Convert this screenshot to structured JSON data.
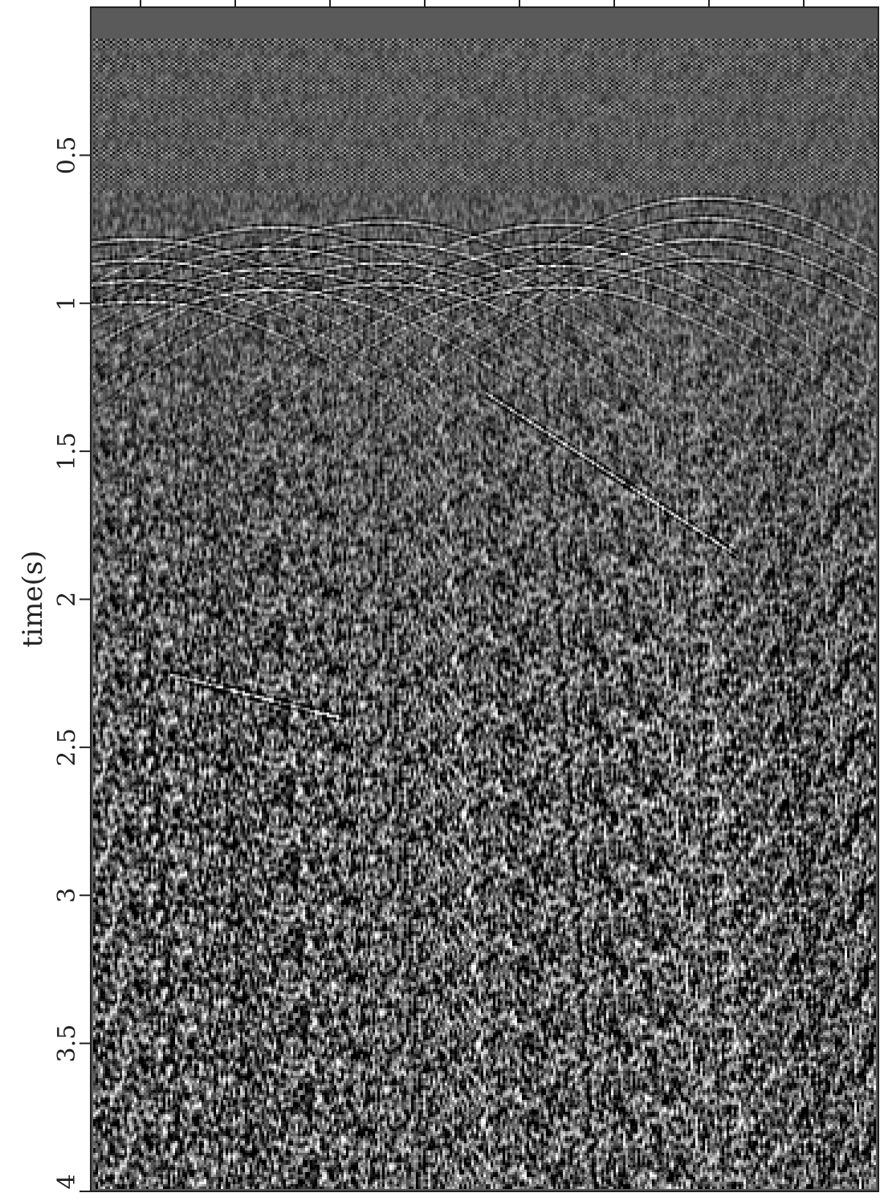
{
  "chart_data": {
    "type": "heatmap",
    "title": "",
    "xlabel": "",
    "ylabel": "time(s)",
    "ylim": [
      0,
      4
    ],
    "y_direction": "down",
    "yticks": [
      0.5,
      1,
      1.5,
      2,
      2.5,
      3,
      3.5,
      4
    ],
    "ytick_labels": [
      "0.5",
      "1",
      "1.5",
      "2",
      "2.5",
      "3",
      "3.5",
      "4"
    ],
    "x_tick_count": 9,
    "x_tick_labels": [],
    "colormap": "grayscale",
    "colors": {
      "background": "#ffffff",
      "axis": "#222222",
      "muted_zone": "#5a5a5a"
    },
    "events": [
      {
        "kind": "diffraction",
        "apex_trace": 0.06,
        "apex_time": 0.78
      },
      {
        "kind": "diffraction",
        "apex_trace": 0.23,
        "apex_time": 0.74
      },
      {
        "kind": "diffraction",
        "apex_trace": 0.37,
        "apex_time": 0.72
      },
      {
        "kind": "diffraction",
        "apex_trace": 0.59,
        "apex_time": 0.73
      },
      {
        "kind": "diffraction",
        "apex_trace": 0.78,
        "apex_time": 0.64
      },
      {
        "kind": "dipping_reflector",
        "trace_start": 0.5,
        "time_start": 1.3,
        "trace_end": 0.82,
        "time_end": 1.85
      },
      {
        "kind": "dipping_reflector",
        "trace_start": 0.1,
        "time_start": 2.25,
        "trace_end": 0.32,
        "time_end": 2.4
      }
    ]
  }
}
